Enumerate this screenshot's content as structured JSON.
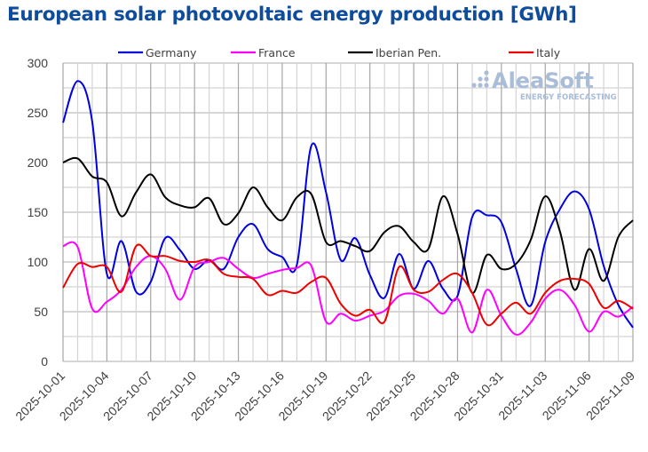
{
  "title": "European solar photovoltaic energy production [GWh]",
  "watermark": {
    "brand": "AleaSoft",
    "tagline": "ENERGY FORECASTING"
  },
  "chart_data": {
    "type": "line",
    "title": "European solar photovoltaic energy production [GWh]",
    "xlabel": "",
    "ylabel": "GWh",
    "ylim": [
      0,
      300
    ],
    "yticks": [
      0,
      50,
      100,
      150,
      200,
      250,
      300
    ],
    "grid": true,
    "legend_position": "top",
    "x_start": "2025-10-01",
    "x_tick_labels": [
      "2025-10-01",
      "2025-10-04",
      "2025-10-07",
      "2025-10-10",
      "2025-10-13",
      "2025-10-16",
      "2025-10-19",
      "2025-10-22",
      "2025-10-25",
      "2025-10-28",
      "2025-10-31",
      "2025-11-03",
      "2025-11-06",
      "2025-11-09"
    ],
    "x_days": 40,
    "series": [
      {
        "name": "Germany",
        "color": "#0000e0",
        "values": [
          240,
          282,
          241,
          88,
          121,
          70,
          80,
          124,
          112,
          93,
          102,
          93,
          125,
          138,
          113,
          105,
          97,
          217,
          170,
          102,
          124,
          87,
          64,
          108,
          73,
          101,
          73,
          66,
          145,
          147,
          140,
          93,
          56,
          120,
          153,
          171,
          153,
          96,
          57,
          34
        ]
      },
      {
        "name": "France",
        "color": "#ff00ff",
        "values": [
          116,
          115,
          53,
          60,
          72,
          95,
          106,
          93,
          62,
          95,
          100,
          104,
          93,
          84,
          88,
          92,
          94,
          96,
          40,
          48,
          41,
          46,
          51,
          66,
          68,
          61,
          48,
          63,
          29,
          72,
          46,
          27,
          39,
          63,
          72,
          57,
          30,
          50,
          45,
          55
        ]
      },
      {
        "name": "Iberian Pen.",
        "color": "#000000",
        "values": [
          200,
          204,
          186,
          180,
          146,
          170,
          188,
          165,
          157,
          155,
          164,
          138,
          149,
          175,
          155,
          142,
          165,
          168,
          120,
          121,
          116,
          111,
          130,
          136,
          120,
          113,
          166,
          128,
          69,
          107,
          93,
          98,
          122,
          166,
          131,
          72,
          113,
          81,
          125,
          142
        ]
      },
      {
        "name": "Italy",
        "color": "#ee0000",
        "values": [
          74,
          98,
          95,
          95,
          70,
          116,
          106,
          106,
          101,
          100,
          102,
          88,
          85,
          83,
          67,
          71,
          69,
          80,
          84,
          58,
          46,
          52,
          40,
          95,
          72,
          70,
          82,
          88,
          69,
          37,
          48,
          59,
          48,
          69,
          81,
          83,
          78,
          54,
          61,
          53
        ]
      }
    ]
  }
}
